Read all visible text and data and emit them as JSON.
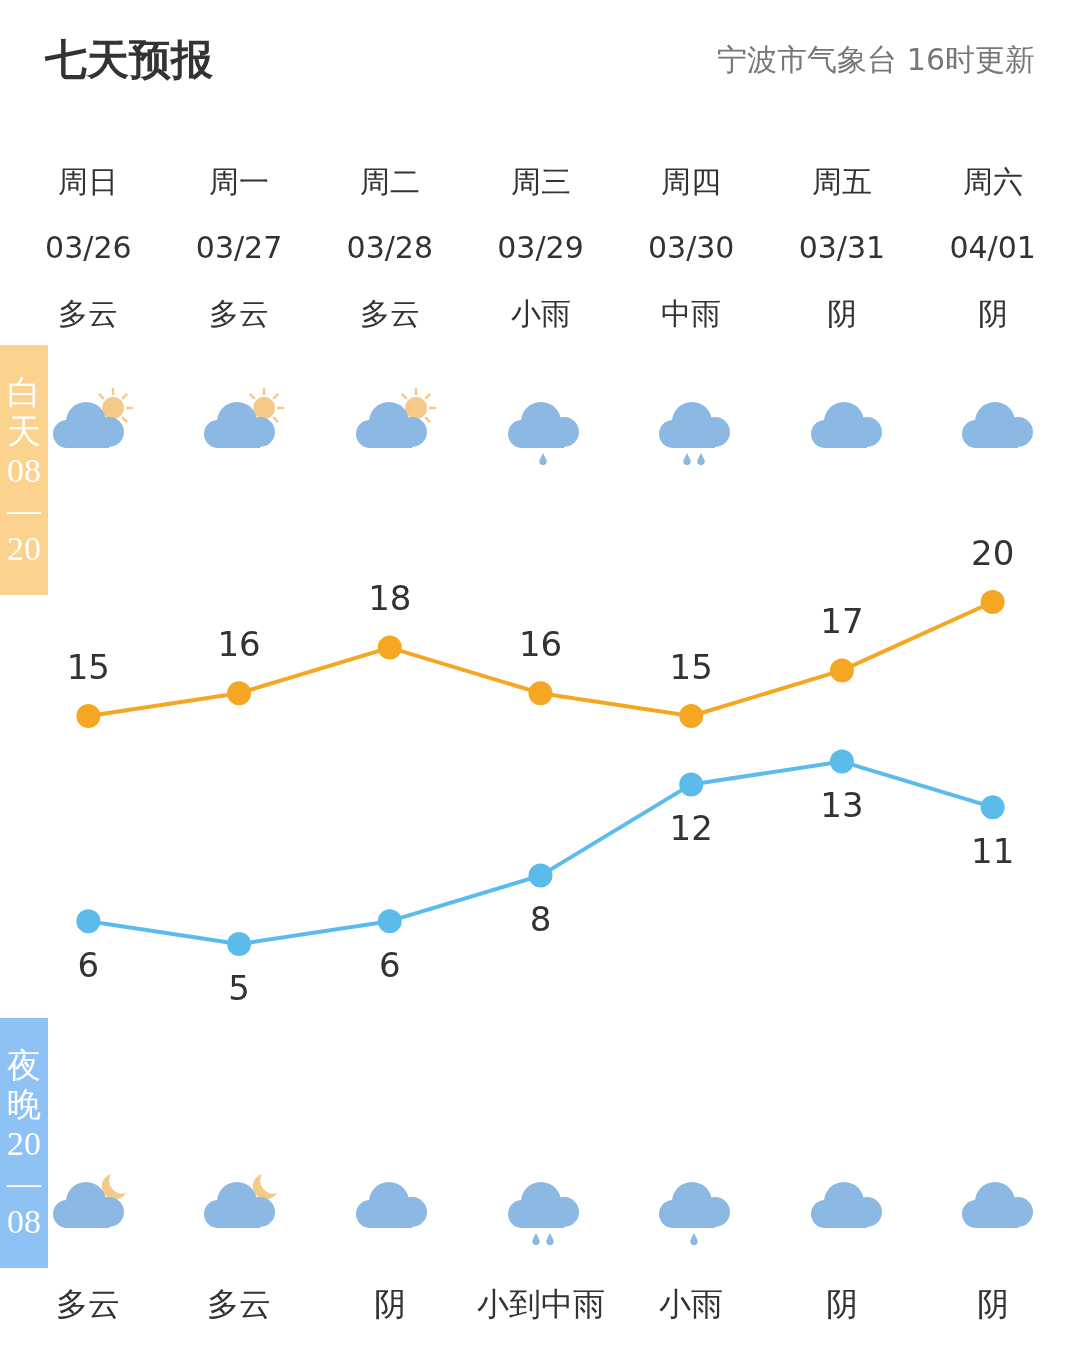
{
  "chart_data": {
    "type": "line",
    "title": "七天预报",
    "subtitle": "宁波市气象台 16时更新",
    "categories": [
      "周日\n03/26\n多云",
      "周一\n03/27\n多云",
      "周二\n03/28\n多云",
      "周三\n03/29\n小雨",
      "周四\n03/30\n中雨",
      "周五\n03/31\n阴",
      "周六\n04/01\n阴"
    ],
    "series": [
      {
        "color": "#f5a623",
        "values": [
          15,
          16,
          18,
          16,
          15,
          17,
          20
        ]
      },
      {
        "color": "#5bbcec",
        "values": [
          6,
          5,
          6,
          8,
          12,
          13,
          11
        ]
      }
    ],
    "data_labels": true,
    "marker": "circle",
    "line_style": "solid",
    "tick_labels": "x",
    "annotations": [
      "白天08—20",
      "夜晚20—08",
      "多云",
      "多云",
      "阴",
      "小到中雨",
      "小雨",
      "阴",
      "阴"
    ]
  }
}
